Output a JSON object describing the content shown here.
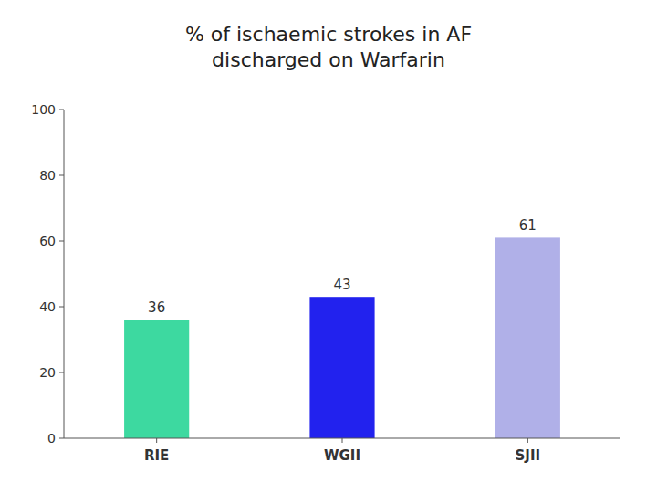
{
  "chart_data": {
    "type": "bar",
    "title": "% of ischaemic strokes in AF\ndischarged on Warfarin",
    "categories": [
      "RIE",
      "WGII",
      "SJII"
    ],
    "values": [
      36,
      43,
      61
    ],
    "colors": [
      "#3dd9a0",
      "#2222ee",
      "#b0b0e8"
    ],
    "ylim": [
      0,
      100
    ],
    "yticks": [
      0,
      20,
      40,
      60,
      80,
      100
    ],
    "grid": false,
    "data_labels": true
  }
}
